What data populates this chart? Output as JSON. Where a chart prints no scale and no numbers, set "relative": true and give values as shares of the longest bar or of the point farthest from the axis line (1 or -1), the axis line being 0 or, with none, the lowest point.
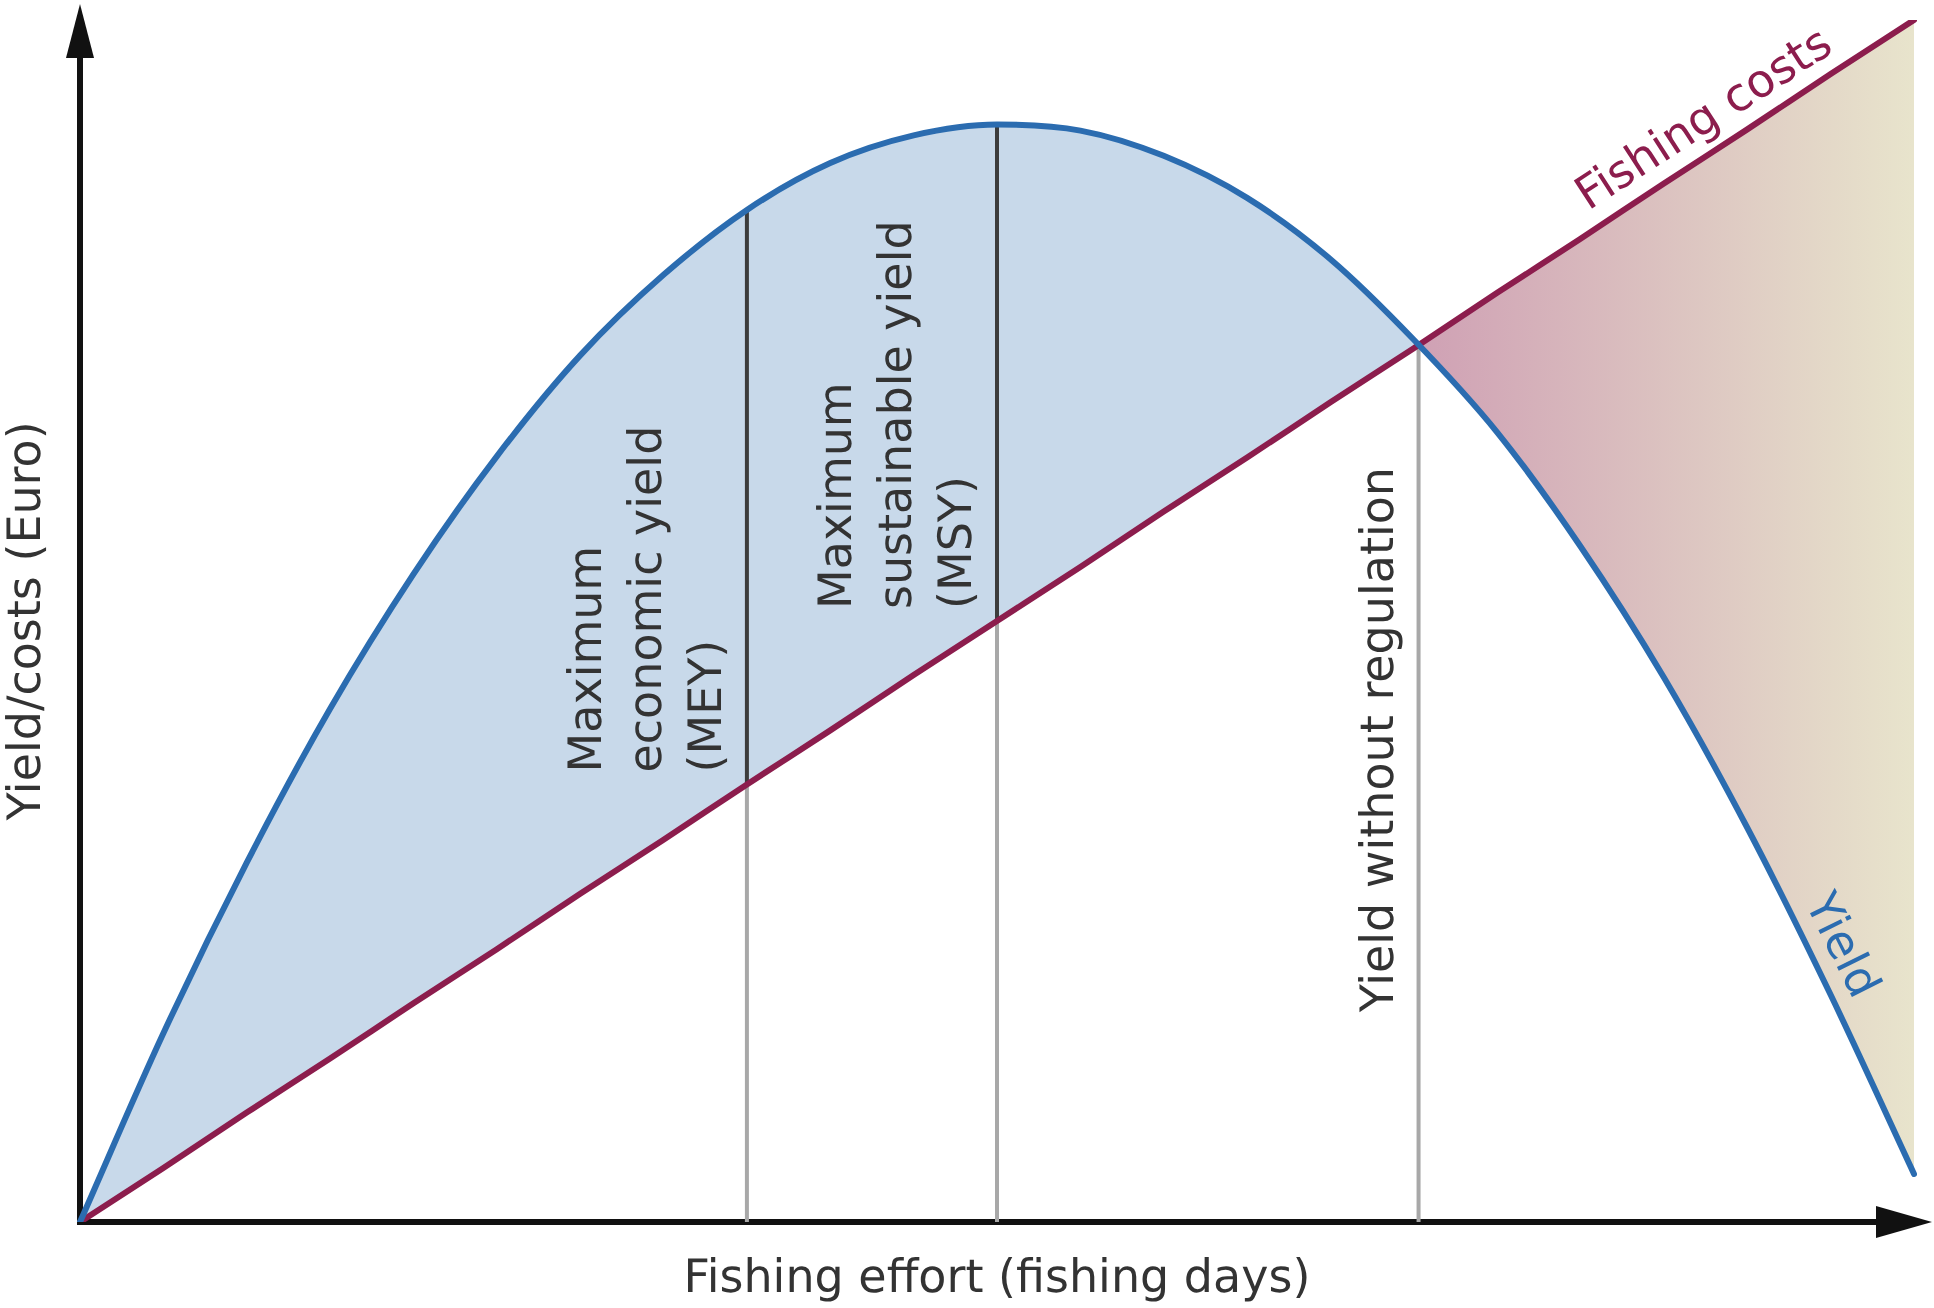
{
  "chart_data": {
    "type": "line",
    "relative": true,
    "xlabel": "Fishing effort (fishing days)",
    "ylabel": "Yield/costs (Euro)",
    "marker": "none",
    "categories": [
      null,
      null,
      null,
      null,
      null,
      null,
      null,
      null,
      null,
      null,
      null,
      null,
      null,
      null,
      null,
      null,
      null,
      null,
      null,
      null,
      null,
      null,
      null
    ],
    "series": [
      {
        "name": "Yield",
        "color": "#2b6cb0",
        "values": [
          0,
          0.157,
          0.299,
          0.427,
          0.539,
          0.637,
          0.721,
          0.788,
          0.842,
          0.881,
          0.904,
          0.913,
          0.908,
          0.887,
          0.852,
          0.801,
          0.734,
          0.657,
          0.562,
          0.453,
          0.328,
          0.189,
          0.04
        ],
        "lower": [
          0,
          0.045,
          0.091,
          0.136,
          0.182,
          0.227,
          0.273,
          0.318,
          0.364,
          0.409,
          0.455,
          0.5,
          0.545,
          0.591,
          0.636,
          0.682,
          0.727,
          null,
          null,
          null,
          null,
          null,
          null
        ],
        "upper": [
          0,
          0.157,
          0.299,
          0.427,
          0.539,
          0.637,
          0.721,
          0.788,
          0.842,
          0.881,
          0.904,
          0.913,
          0.908,
          0.887,
          0.852,
          0.801,
          0.734,
          null,
          null,
          null,
          null,
          null,
          null
        ]
      },
      {
        "name": "Fishing costs",
        "color": "#8c1d4d",
        "values": [
          0,
          0.045,
          0.091,
          0.136,
          0.182,
          0.227,
          0.273,
          0.318,
          0.364,
          0.409,
          0.455,
          0.5,
          0.545,
          0.591,
          0.636,
          0.682,
          0.727,
          0.773,
          0.818,
          0.864,
          0.909,
          0.955,
          1
        ],
        "lower": [
          null,
          null,
          null,
          null,
          null,
          null,
          null,
          null,
          null,
          null,
          null,
          null,
          null,
          null,
          null,
          null,
          0.734,
          0.657,
          0.562,
          0.453,
          0.328,
          0.189,
          0.04
        ],
        "upper": [
          null,
          null,
          null,
          null,
          null,
          null,
          null,
          null,
          null,
          null,
          null,
          null,
          null,
          null,
          null,
          null,
          0.727,
          0.773,
          0.818,
          0.864,
          0.909,
          0.955,
          1
        ]
      }
    ],
    "annotations": [
      "Maximum\neconomic yield\n(MEY)",
      "Maximum\nsustainable yield\n(MSY)",
      "Yield without regulation"
    ]
  }
}
